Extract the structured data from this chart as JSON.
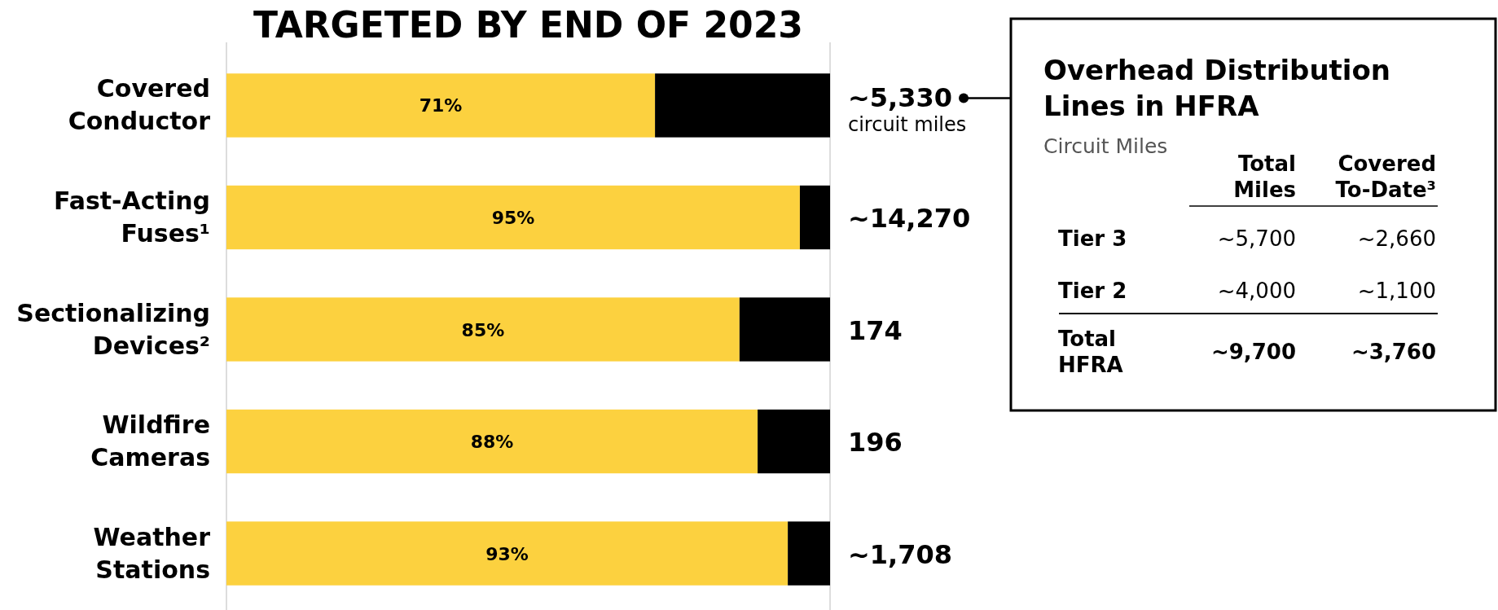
{
  "chart_data": [
    {
      "type": "bar",
      "title": "TARGETED BY END OF 2023",
      "orientation": "horizontal",
      "stacked": true,
      "categories": [
        "Covered Conductor",
        "Fast-Acting Fuses¹",
        "Sectionalizing Devices²",
        "Wildfire Cameras",
        "Weather Stations"
      ],
      "series": [
        {
          "color": "#fcd13f",
          "values": [
            71,
            95,
            85,
            88,
            93
          ],
          "value_labels": [
            "71%",
            "95%",
            "85%",
            "88%",
            "93%"
          ]
        },
        {
          "color": "#000000",
          "values": [
            29,
            5,
            15,
            12,
            7
          ]
        }
      ],
      "xlim": [
        0,
        100
      ],
      "tick_labels": false,
      "annotations": [
        "~5,330",
        "circuit miles",
        "~14,270",
        "174",
        "196",
        "~1,708"
      ]
    },
    {
      "type": "other",
      "title": "Overhead Distribution Lines in HFRA",
      "subtitle": "Circuit Miles",
      "annotations": [
        "Total Miles",
        "Covered To-Date³",
        "Tier 3",
        "~5,700",
        "~2,660",
        "Tier 2",
        "~4,000",
        "~1,100",
        "Total HFRA",
        "~9,700",
        "~3,760"
      ]
    }
  ]
}
